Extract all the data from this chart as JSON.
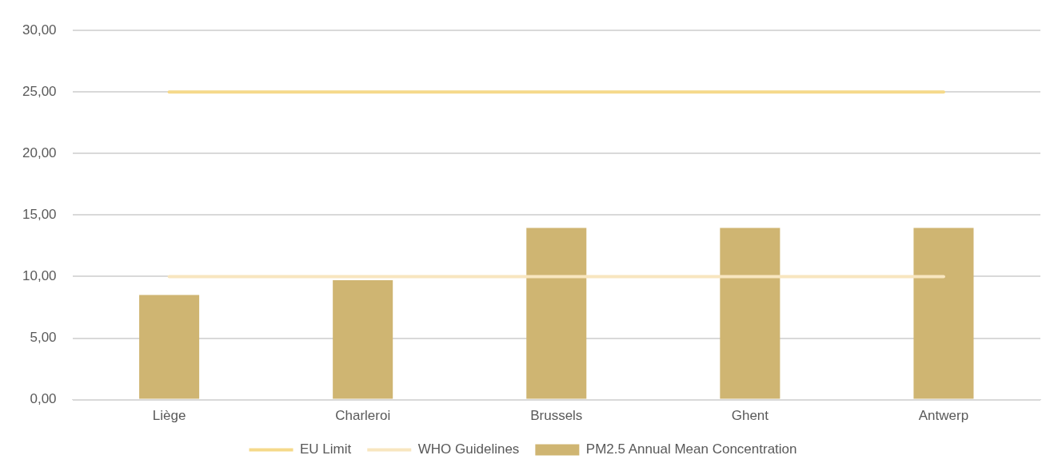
{
  "chart_data": {
    "type": "bar",
    "categories": [
      "Liège",
      "Charleroi",
      "Brussels",
      "Ghent",
      "Antwerp"
    ],
    "series": [
      {
        "name": "PM2.5 Annual Mean Concentration",
        "color": "#cfb572",
        "values": [
          8.5,
          9.7,
          13.95,
          13.95,
          13.95
        ]
      },
      {
        "name": "EU Limit",
        "type": "line",
        "color": "#f5d98a",
        "values": [
          25,
          25,
          25,
          25,
          25
        ]
      },
      {
        "name": "WHO Guidelines",
        "type": "line",
        "color": "#f8e6bf",
        "values": [
          10,
          10,
          10,
          10,
          10
        ]
      }
    ],
    "ylim": [
      0,
      30
    ],
    "yticks": [
      {
        "value": 0,
        "label": "0,00"
      },
      {
        "value": 5,
        "label": "5,00"
      },
      {
        "value": 10,
        "label": "10,00"
      },
      {
        "value": 15,
        "label": "15,00"
      },
      {
        "value": 20,
        "label": "20,00"
      },
      {
        "value": 25,
        "label": "25,00"
      },
      {
        "value": 30,
        "label": "30,00"
      }
    ],
    "grid": "y",
    "legend": "bottom",
    "marker": "none"
  }
}
